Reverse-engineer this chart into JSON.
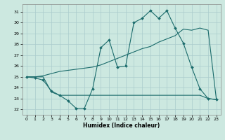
{
  "xlabel": "Humidex (Indice chaleur)",
  "background_color": "#cce8e0",
  "grid_color": "#aacccc",
  "line_color": "#1a6b6b",
  "xlim": [
    -0.5,
    23.5
  ],
  "ylim": [
    21.5,
    31.7
  ],
  "yticks": [
    22,
    23,
    24,
    25,
    26,
    27,
    28,
    29,
    30,
    31
  ],
  "xticks": [
    0,
    1,
    2,
    3,
    4,
    5,
    6,
    7,
    8,
    9,
    10,
    11,
    12,
    13,
    14,
    15,
    16,
    17,
    18,
    19,
    20,
    21,
    22,
    23
  ],
  "series1_x": [
    0,
    1,
    2,
    3,
    4,
    5,
    6,
    7,
    8,
    9,
    10,
    11,
    12,
    13,
    14,
    15,
    16,
    17,
    18,
    19,
    20,
    21,
    22,
    23
  ],
  "series1_y": [
    25.0,
    24.9,
    24.7,
    23.7,
    23.3,
    22.8,
    22.1,
    22.1,
    23.9,
    27.7,
    28.4,
    25.9,
    26.0,
    30.0,
    30.4,
    31.1,
    30.4,
    31.1,
    29.5,
    28.1,
    25.9,
    23.9,
    23.0,
    22.9
  ],
  "series2_x": [
    0,
    1,
    2,
    3,
    4,
    5,
    6,
    7,
    8,
    9,
    10,
    11,
    12,
    13,
    14,
    15,
    16,
    17,
    18,
    19,
    20,
    21,
    22,
    23
  ],
  "series2_y": [
    25.0,
    25.0,
    25.1,
    25.3,
    25.5,
    25.6,
    25.7,
    25.8,
    25.9,
    26.1,
    26.4,
    26.7,
    27.0,
    27.3,
    27.6,
    27.8,
    28.2,
    28.5,
    28.8,
    29.4,
    29.3,
    29.5,
    29.3,
    22.9
  ],
  "series3_x": [
    0,
    1,
    2,
    3,
    4,
    5,
    6,
    7,
    8,
    9,
    10,
    11,
    12,
    13,
    14,
    15,
    16,
    17,
    18,
    19,
    20,
    21,
    22,
    23
  ],
  "series3_y": [
    25.0,
    25.0,
    25.0,
    23.6,
    23.3,
    23.3,
    23.3,
    23.3,
    23.3,
    23.3,
    23.3,
    23.3,
    23.3,
    23.3,
    23.3,
    23.3,
    23.3,
    23.3,
    23.3,
    23.3,
    23.3,
    23.3,
    23.0,
    22.9
  ]
}
